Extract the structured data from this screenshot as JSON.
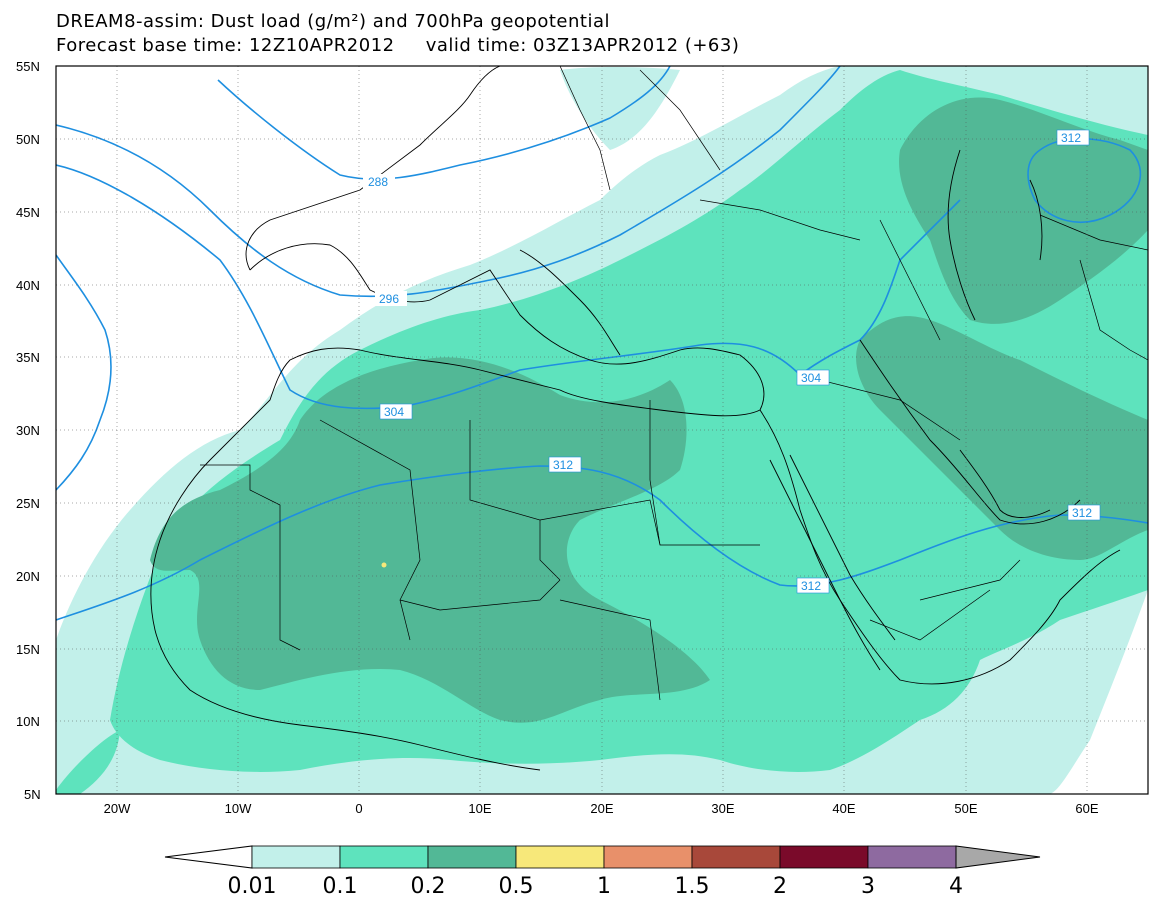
{
  "title": {
    "line1": "DREAM8-assim: Dust load (g/m²) and 700hPa geopotential",
    "line2": "Forecast base time: 12Z10APR2012     valid time: 03Z13APR2012 (+63)"
  },
  "axes": {
    "lat_labels": [
      "55N",
      "50N",
      "45N",
      "40N",
      "35N",
      "30N",
      "25N",
      "20N",
      "15N",
      "10N",
      "5N"
    ],
    "lon_labels": [
      "20W",
      "10W",
      "0",
      "10E",
      "20E",
      "30E",
      "40E",
      "50E",
      "60E"
    ]
  },
  "contours": {
    "labels": [
      "288",
      "296",
      "304",
      "304",
      "312",
      "312",
      "312",
      "312"
    ],
    "color": "#1e8fe0"
  },
  "colorbar": {
    "labels": [
      "0.01",
      "0.1",
      "0.2",
      "0.5",
      "1",
      "1.5",
      "2",
      "3",
      "4"
    ],
    "colors": [
      "#ffffff",
      "#c2f0ea",
      "#5ee3bd",
      "#52b896",
      "#f7e87a",
      "#e8906a",
      "#a8483a",
      "#7a0a2a",
      "#8e6aa0",
      "#a8a8a8"
    ]
  },
  "chart_data": {
    "type": "heatmap",
    "title": "DREAM8-assim: Dust load (g/m²) and 700hPa geopotential",
    "lat_range": [
      "5N",
      "55N"
    ],
    "lon_range": [
      "25W",
      "65E"
    ],
    "grid": true,
    "legend": "bottom",
    "levels": [
      0.01,
      0.1,
      0.2,
      0.5,
      1,
      1.5,
      2,
      3,
      4
    ],
    "contour_levels": [
      288,
      296,
      304,
      312
    ]
  }
}
